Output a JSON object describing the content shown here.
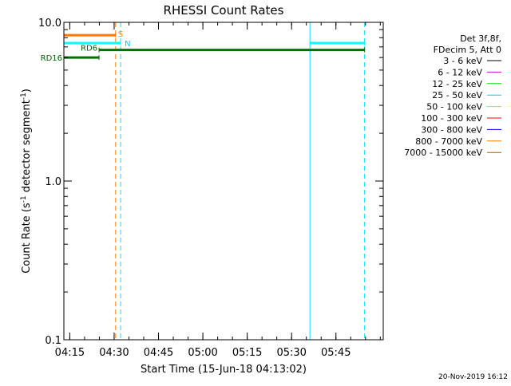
{
  "chart_data": {
    "type": "line",
    "title": "RHESSI Count Rates",
    "xlabel": "Start Time (15-Jun-18 04:13:02)",
    "ylabel_main": "Count Rate (s",
    "ylabel_sup1": "-1",
    "ylabel_mid": " detector segment",
    "ylabel_sup2": "-1",
    "ylabel_end": ")",
    "yscale": "log",
    "ylim": [
      0.1,
      10.0
    ],
    "xlim_minutes": [
      0,
      108
    ],
    "x_ticks": [
      {
        "label": "04:15",
        "minute": 2
      },
      {
        "label": "04:30",
        "minute": 17
      },
      {
        "label": "04:45",
        "minute": 32
      },
      {
        "label": "05:00",
        "minute": 47
      },
      {
        "label": "05:15",
        "minute": 62
      },
      {
        "label": "05:30",
        "minute": 77
      },
      {
        "label": "05:45",
        "minute": 92
      }
    ],
    "y_ticks": [
      {
        "label": "0.1",
        "value": 0.1
      },
      {
        "label": "1.0",
        "value": 1.0
      },
      {
        "label": "10.0",
        "value": 10.0
      }
    ],
    "legend": {
      "position": "right",
      "header": [
        "Det 3f,8f,",
        "FDecim 5, Att 0"
      ],
      "items": [
        {
          "label": "3 - 6 keV",
          "color": "#000000"
        },
        {
          "label": "6 - 12 keV",
          "color": "#e000e0"
        },
        {
          "label": "12 - 25 keV",
          "color": "#00e000"
        },
        {
          "label": "25 - 50 keV",
          "color": "#00c8ff"
        },
        {
          "label": "50 - 100 keV",
          "color": "#ffc800"
        },
        {
          "label": "100 - 300 keV",
          "color": "#ff0000"
        },
        {
          "label": "300 - 800 keV",
          "color": "#0000ff"
        },
        {
          "label": "800 - 7000 keV",
          "color": "#ff8000"
        },
        {
          "label": "7000 - 15000 keV",
          "color": "#a06000"
        }
      ]
    },
    "state_bars": [
      {
        "label": "S",
        "label_color": "#ff8c00",
        "color": "#ff7800",
        "segments": [
          [
            0,
            17.5
          ]
        ],
        "level": 8.3
      },
      {
        "label": "N",
        "label_color": "#00c8ff",
        "color": "#00ffff",
        "segments": [
          [
            0,
            19.2
          ],
          [
            83.2,
            101.7
          ]
        ],
        "level": 7.4
      },
      {
        "label": "RD6",
        "label_color": "#006400",
        "color": "#007000",
        "segments": [
          [
            11.9,
            101.7
          ]
        ],
        "level": 6.7
      },
      {
        "label": "RD16",
        "label_color": "#006400",
        "color": "#007000",
        "segments": [
          [
            0,
            11.9
          ]
        ],
        "level": 6.0
      }
    ],
    "vertical_markers": [
      {
        "minute": 0,
        "color": "#00e0ff",
        "style": "solid"
      },
      {
        "minute": 17.5,
        "color": "#ff7800",
        "style": "dashed"
      },
      {
        "minute": 19.2,
        "color": "#00e0ff",
        "style": "dashed"
      },
      {
        "minute": 83.2,
        "color": "#00e0ff",
        "style": "solid"
      },
      {
        "minute": 101.7,
        "color": "#00e0ff",
        "style": "dashed"
      }
    ],
    "timestamp": "20-Nov-2019 16:12"
  }
}
